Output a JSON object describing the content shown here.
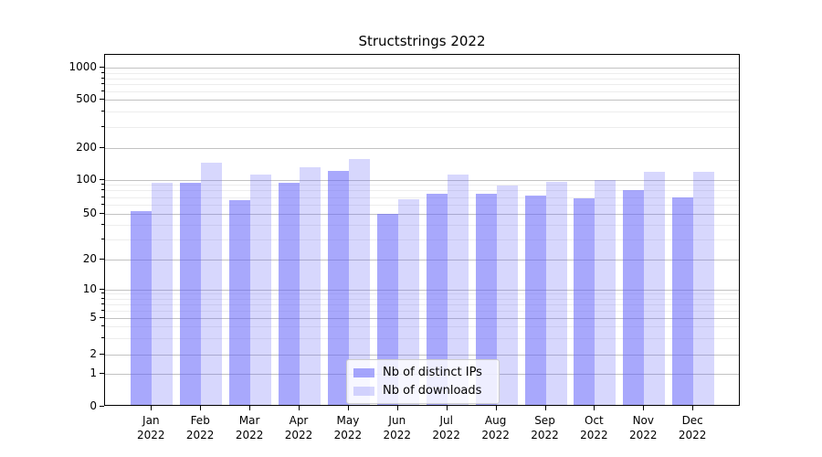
{
  "title": "Structstrings 2022",
  "chart_data": {
    "type": "bar",
    "categories": [
      "Jan",
      "Feb",
      "Mar",
      "Apr",
      "May",
      "Jun",
      "Jul",
      "Aug",
      "Sep",
      "Oct",
      "Nov",
      "Dec"
    ],
    "year": "2022",
    "series": [
      {
        "name": "Nb of distinct IPs",
        "color": "#a9a9f7",
        "fill": "rgba(97,97,249,0.55)",
        "values": [
          51,
          90,
          64,
          90,
          116,
          48,
          72,
          72,
          69,
          66,
          78,
          67
        ]
      },
      {
        "name": "Nb of downloads",
        "color": "#d8d8fa",
        "fill": "rgba(97,97,249,0.25)",
        "values": [
          90,
          139,
          108,
          125,
          152,
          65,
          107,
          86,
          92,
          96,
          113,
          113
        ]
      }
    ],
    "xlabel": "",
    "ylabel": "",
    "scale": "symlog",
    "y_ticks": [
      0,
      1,
      2,
      5,
      10,
      20,
      50,
      100,
      200,
      500,
      1000
    ],
    "y_minor_ticks": [
      3,
      4,
      6,
      7,
      8,
      9,
      30,
      40,
      60,
      70,
      80,
      90,
      300,
      400,
      600,
      700,
      800,
      900
    ],
    "ylim": [
      0,
      1400
    ],
    "grid": "horizontal",
    "legend_position": "lower center"
  },
  "legend": {
    "entries": [
      {
        "label": "Nb of distinct IPs"
      },
      {
        "label": "Nb of downloads"
      }
    ]
  }
}
